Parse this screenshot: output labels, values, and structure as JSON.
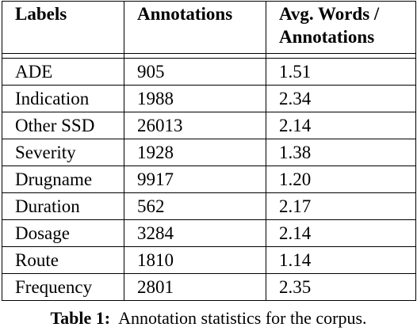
{
  "table": {
    "headers": [
      "Labels",
      "Annotations",
      "Avg. Words / Annotations"
    ],
    "rows": [
      {
        "label": "ADE",
        "annotations": "905",
        "avg": "1.51"
      },
      {
        "label": "Indication",
        "annotations": "1988",
        "avg": "2.34"
      },
      {
        "label": "Other SSD",
        "annotations": "26013",
        "avg": "2.14"
      },
      {
        "label": "Severity",
        "annotations": "1928",
        "avg": "1.38"
      },
      {
        "label": "Drugname",
        "annotations": "9917",
        "avg": "1.20"
      },
      {
        "label": "Duration",
        "annotations": "562",
        "avg": "2.17"
      },
      {
        "label": "Dosage",
        "annotations": "3284",
        "avg": "2.14"
      },
      {
        "label": "Route",
        "annotations": "1810",
        "avg": "1.14"
      },
      {
        "label": "Frequency",
        "annotations": "2801",
        "avg": "2.35"
      }
    ]
  },
  "caption": {
    "label": "Table 1:",
    "text": "Annotation statistics for the corpus."
  }
}
